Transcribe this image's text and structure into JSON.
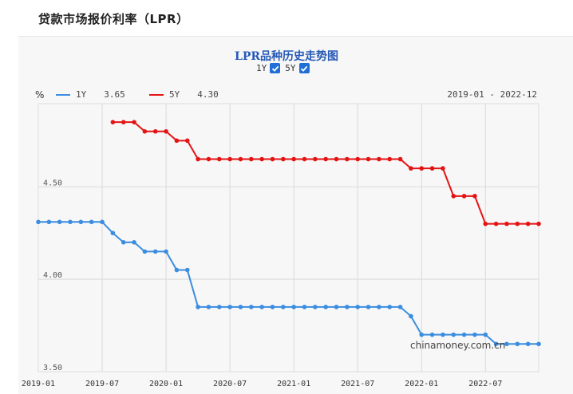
{
  "page": {
    "title": "贷款市场报价利率（LPR）"
  },
  "controls": {
    "toggles": [
      {
        "label": "1Y",
        "checked": true
      },
      {
        "label": "5Y",
        "checked": true
      }
    ]
  },
  "legend": {
    "unit": "%",
    "items": [
      {
        "label": "1Y",
        "value": "3.65",
        "color": "#3b8de0"
      },
      {
        "label": "5Y",
        "value": "4.30",
        "color": "#e41414"
      }
    ],
    "range": "2019-01 - 2022-12"
  },
  "watermark": "chinamoney.com.cn",
  "chart_data": {
    "type": "line",
    "title": "LPR品种历史走势图",
    "xlabel": "",
    "ylabel": "%",
    "ylim": [
      3.5,
      4.95
    ],
    "yticks": [
      "4.50",
      "4.00",
      "3.50"
    ],
    "yticks_values": [
      4.5,
      4.0,
      3.5
    ],
    "x_tick_labels": [
      "2019-01",
      "2019-07",
      "2020-01",
      "2020-07",
      "2021-01",
      "2021-07",
      "2022-01",
      "2022-07"
    ],
    "x_start": "2019-01",
    "x_end": "2022-12",
    "grid": true,
    "series": [
      {
        "name": "1Y",
        "color": "#3b8de0",
        "start": "2019-01",
        "values": [
          4.31,
          4.31,
          4.31,
          4.31,
          4.31,
          4.31,
          4.31,
          4.25,
          4.2,
          4.2,
          4.15,
          4.15,
          4.15,
          4.05,
          4.05,
          3.85,
          3.85,
          3.85,
          3.85,
          3.85,
          3.85,
          3.85,
          3.85,
          3.85,
          3.85,
          3.85,
          3.85,
          3.85,
          3.85,
          3.85,
          3.85,
          3.85,
          3.85,
          3.85,
          3.85,
          3.8,
          3.7,
          3.7,
          3.7,
          3.7,
          3.7,
          3.7,
          3.7,
          3.65,
          3.65,
          3.65,
          3.65,
          3.65
        ]
      },
      {
        "name": "5Y",
        "color": "#e41414",
        "start": "2019-08",
        "values": [
          4.85,
          4.85,
          4.85,
          4.8,
          4.8,
          4.8,
          4.75,
          4.75,
          4.65,
          4.65,
          4.65,
          4.65,
          4.65,
          4.65,
          4.65,
          4.65,
          4.65,
          4.65,
          4.65,
          4.65,
          4.65,
          4.65,
          4.65,
          4.65,
          4.65,
          4.65,
          4.65,
          4.65,
          4.6,
          4.6,
          4.6,
          4.6,
          4.45,
          4.45,
          4.45,
          4.3,
          4.3,
          4.3,
          4.3,
          4.3,
          4.3
        ]
      }
    ]
  }
}
